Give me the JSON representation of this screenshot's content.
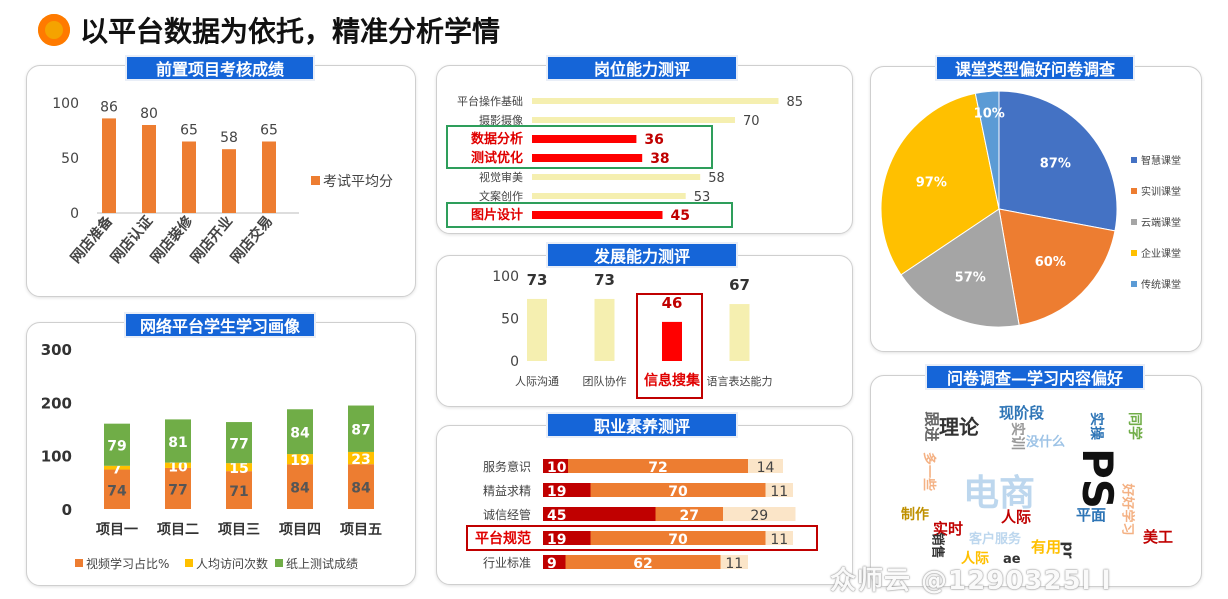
{
  "header": {
    "title": "以平台数据为依托，精准分析学情"
  },
  "watermark": "众师云 @1290325l l",
  "colors": {
    "accent": "#1565d8",
    "orange": "#ed7d31",
    "yellow": "#ffc000",
    "green": "#70ad47",
    "red": "#ff0000",
    "darkred": "#c00000",
    "pale": "#f5efb0"
  },
  "panels": {
    "prior": "前置项目考核成绩",
    "ability": "岗位能力测评",
    "development": "发展能力测评",
    "career": "职业素养测评",
    "portrait": "网络平台学生学习画像",
    "classroom": "课堂类型偏好问卷调查",
    "content": "问卷调查—学习内容偏好"
  },
  "chart_data": [
    {
      "type": "bar",
      "title": "前置项目考核成绩",
      "categories": [
        "网店准备",
        "网店认证",
        "网店装修",
        "网店开业",
        "网店交易"
      ],
      "series": [
        {
          "name": "考试平均分",
          "values": [
            86,
            80,
            65,
            58,
            65
          ]
        }
      ],
      "ylim": [
        0,
        100
      ],
      "yticks": [
        0,
        50,
        100
      ],
      "legend": "right"
    },
    {
      "type": "bar",
      "orientation": "horizontal",
      "title": "岗位能力测评",
      "categories": [
        "平台操作基础",
        "摄影摄像",
        "数据分析",
        "测试优化",
        "视觉审美",
        "文案创作",
        "图片设计"
      ],
      "values": [
        85,
        70,
        36,
        38,
        58,
        53,
        45
      ],
      "highlight": [
        "数据分析",
        "测试优化",
        "图片设计"
      ]
    },
    {
      "type": "bar",
      "title": "发展能力测评",
      "categories": [
        "人际沟通",
        "团队协作",
        "信息搜集",
        "语言表达能力"
      ],
      "values": [
        73,
        73,
        46,
        67
      ],
      "ylim": [
        0,
        100
      ],
      "yticks": [
        0,
        50,
        100
      ],
      "highlight": [
        "信息搜集"
      ]
    },
    {
      "type": "bar",
      "orientation": "horizontal",
      "stacked": true,
      "title": "职业素养测评",
      "categories": [
        "服务意识",
        "精益求精",
        "诚信经管",
        "平台规范",
        "行业标准"
      ],
      "segments": [
        [
          10,
          72,
          14
        ],
        [
          19,
          70,
          11
        ],
        [
          45,
          27,
          29
        ],
        [
          19,
          70,
          11
        ],
        [
          9,
          62,
          11
        ]
      ],
      "highlight": [
        "平台规范"
      ]
    },
    {
      "type": "bar",
      "stacked": true,
      "title": "网络平台学生学习画像",
      "categories": [
        "项目一",
        "项目二",
        "项目三",
        "项目四",
        "项目五"
      ],
      "series": [
        {
          "name": "视频学习占比%",
          "values": [
            74,
            77,
            71,
            84,
            84
          ]
        },
        {
          "name": "人均访问次数",
          "values": [
            7,
            10,
            15,
            19,
            23
          ]
        },
        {
          "name": "纸上测试成绩",
          "values": [
            79,
            81,
            77,
            84,
            87
          ]
        }
      ],
      "ylim": [
        0,
        300
      ],
      "yticks": [
        0,
        100,
        200,
        300
      ],
      "legend": "bottom"
    },
    {
      "type": "pie",
      "title": "课堂类型偏好问卷调查",
      "categories": [
        "智慧课堂",
        "实训课堂",
        "云端课堂",
        "企业课堂",
        "传统课堂"
      ],
      "values": [
        87,
        60,
        57,
        97,
        10
      ],
      "labels": [
        "87%",
        "60%",
        "57%",
        "97%",
        "10%"
      ],
      "legend": "right"
    }
  ],
  "wordcloud": [
    {
      "text": "理论",
      "color": "#333333"
    },
    {
      "text": "现阶段",
      "color": "#2e75b6"
    },
    {
      "text": "实操",
      "color": "#2e75b6"
    },
    {
      "text": "同学",
      "color": "#70ad47"
    },
    {
      "text": "跟进",
      "color": "#666666"
    },
    {
      "text": "实训",
      "color": "#999999"
    },
    {
      "text": "没什么",
      "color": "#9dc3e6"
    },
    {
      "text": "电商",
      "color": "#bdd7ee"
    },
    {
      "text": "PS",
      "color": "#111111"
    },
    {
      "text": "多一些",
      "color": "#f4b183"
    },
    {
      "text": "制作",
      "color": "#bf9000"
    },
    {
      "text": "实时",
      "color": "#c00000"
    },
    {
      "text": "人际",
      "color": "#c00000"
    },
    {
      "text": "平面",
      "color": "#2e75b6"
    },
    {
      "text": "好好学习",
      "color": "#f4b183"
    },
    {
      "text": "美工",
      "color": "#c00000"
    },
    {
      "text": "客户服务",
      "color": "#bdd7ee"
    },
    {
      "text": "销售",
      "color": "#333333"
    },
    {
      "text": "人际",
      "color": "#ffc000"
    },
    {
      "text": "ae",
      "color": "#333333"
    },
    {
      "text": "有用",
      "color": "#ffc000"
    },
    {
      "text": "pr",
      "color": "#333333"
    }
  ]
}
